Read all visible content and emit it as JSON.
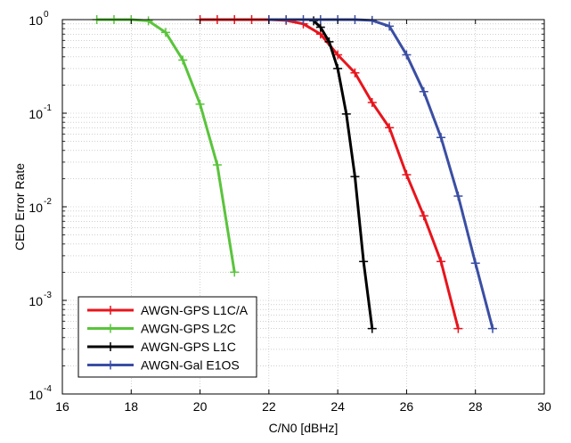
{
  "chart_data": {
    "type": "line",
    "xlabel": "C/N0 [dBHz]",
    "ylabel": "CED Error Rate",
    "xlim": [
      16,
      30
    ],
    "ylim": [
      0.0001,
      1
    ],
    "yscale": "log",
    "grid": true,
    "legend_position": "bottom-left",
    "x_ticks": [
      16,
      18,
      20,
      22,
      24,
      26,
      28,
      30
    ],
    "y_ticks": [
      {
        "value": 0.0001,
        "base": "10",
        "exp": "-4"
      },
      {
        "value": 0.001,
        "base": "10",
        "exp": "-3"
      },
      {
        "value": 0.01,
        "base": "10",
        "exp": "-2"
      },
      {
        "value": 0.1,
        "base": "10",
        "exp": "-1"
      },
      {
        "value": 1,
        "base": "10",
        "exp": "0"
      }
    ],
    "series": [
      {
        "name": "AWGN-GPS L1C/A",
        "color": "#e8141c",
        "x": [
          20,
          20.5,
          21,
          21.5,
          22,
          22.5,
          23,
          23.5,
          24,
          24.5,
          25,
          25.5,
          26,
          26.5,
          27,
          27.5
        ],
        "y": [
          1,
          1,
          1,
          1,
          1,
          0.98,
          0.9,
          0.7,
          0.42,
          0.27,
          0.13,
          0.07,
          0.022,
          0.008,
          0.0026,
          0.0005
        ]
      },
      {
        "name": "AWGN-GPS L2C",
        "color": "#5ac43c",
        "x": [
          17,
          17.5,
          18,
          18.5,
          19,
          19.5,
          20,
          20.5,
          21
        ],
        "y": [
          1,
          1,
          1,
          0.97,
          0.73,
          0.37,
          0.125,
          0.028,
          0.002
        ]
      },
      {
        "name": "AWGN-GPS L1C",
        "color": "#000000",
        "x": [
          23.3,
          23.5,
          23.75,
          24,
          24.25,
          24.5,
          24.75,
          25
        ],
        "y": [
          0.97,
          0.83,
          0.58,
          0.3,
          0.098,
          0.021,
          0.0026,
          0.0005
        ]
      },
      {
        "name": "AWGN-Gal E1OS",
        "color": "#3a4ea3",
        "x": [
          22,
          22.5,
          23,
          23.5,
          24,
          24.5,
          25,
          25.5,
          26,
          26.5,
          27,
          27.5,
          28,
          28.5
        ],
        "y": [
          1,
          1,
          1,
          1,
          1,
          1,
          0.98,
          0.85,
          0.42,
          0.17,
          0.055,
          0.013,
          0.0025,
          0.0005
        ]
      }
    ]
  }
}
